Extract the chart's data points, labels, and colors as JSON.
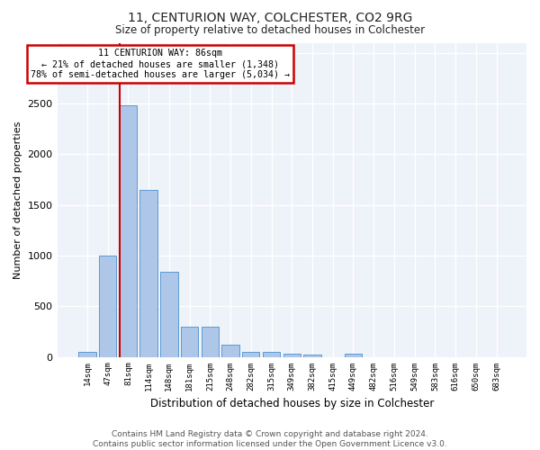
{
  "title1": "11, CENTURION WAY, COLCHESTER, CO2 9RG",
  "title2": "Size of property relative to detached houses in Colchester",
  "xlabel": "Distribution of detached houses by size in Colchester",
  "ylabel": "Number of detached properties",
  "footer1": "Contains HM Land Registry data © Crown copyright and database right 2024.",
  "footer2": "Contains public sector information licensed under the Open Government Licence v3.0.",
  "annotation_line1": "11 CENTURION WAY: 86sqm",
  "annotation_line2": "← 21% of detached houses are smaller (1,348)",
  "annotation_line3": "78% of semi-detached houses are larger (5,034) →",
  "bar_color": "#aec6e8",
  "bar_edge_color": "#5b9bd5",
  "vline_color": "#cc0000",
  "vline_x_index": 2,
  "categories": [
    "14sqm",
    "47sqm",
    "81sqm",
    "114sqm",
    "148sqm",
    "181sqm",
    "215sqm",
    "248sqm",
    "282sqm",
    "315sqm",
    "349sqm",
    "382sqm",
    "415sqm",
    "449sqm",
    "482sqm",
    "516sqm",
    "549sqm",
    "583sqm",
    "616sqm",
    "650sqm",
    "683sqm"
  ],
  "values": [
    52,
    1000,
    2480,
    1650,
    840,
    295,
    295,
    120,
    50,
    50,
    35,
    20,
    0,
    30,
    0,
    0,
    0,
    0,
    0,
    0,
    0
  ],
  "ylim": [
    0,
    3100
  ],
  "yticks": [
    0,
    500,
    1000,
    1500,
    2000,
    2500,
    3000
  ],
  "background_color": "#eef2f9",
  "annotation_box_color": "#ffffff",
  "annotation_box_edge": "#cc0000",
  "title1_fontsize": 10,
  "title2_fontsize": 8.5,
  "xlabel_fontsize": 8.5,
  "ylabel_fontsize": 8,
  "footer_fontsize": 6.5
}
